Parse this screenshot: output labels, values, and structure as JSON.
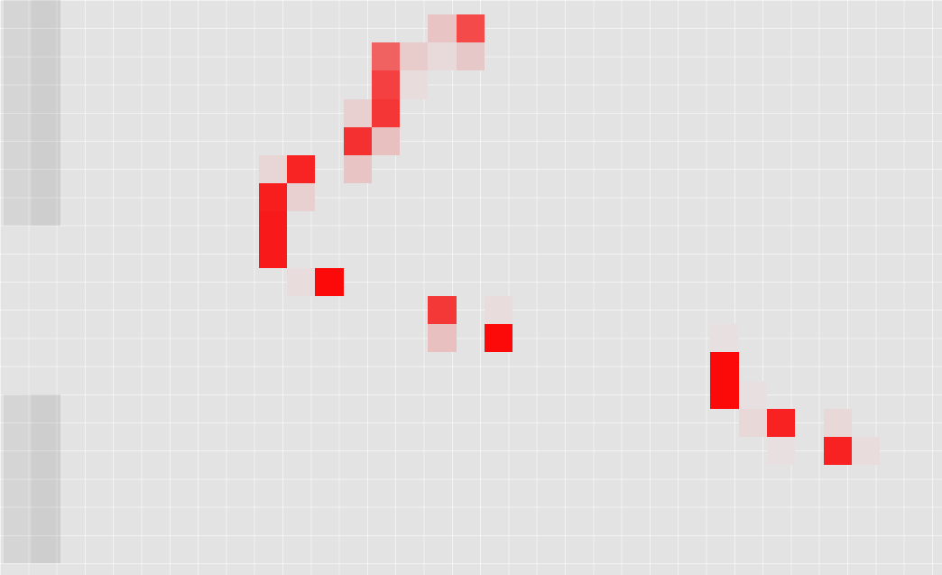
{
  "game": {
    "grid": {
      "columns": 34,
      "rows": 21,
      "background_color": "#e3e3e3",
      "line_color": "#f4f4f4"
    },
    "shaded_columns": [
      {
        "col": 1,
        "row_start": 0,
        "row_end": 7,
        "intensity": 0.06
      },
      {
        "col": 2,
        "row_start": 0,
        "row_end": 7,
        "intensity": 0.09
      },
      {
        "col": 1,
        "row_start": 14,
        "row_end": 19,
        "intensity": 0.06
      },
      {
        "col": 2,
        "row_start": 14,
        "row_end": 19,
        "intensity": 0.09
      }
    ],
    "cells": [
      {
        "col": 16,
        "row": 0,
        "color": "#e8c4c4"
      },
      {
        "col": 17,
        "row": 0,
        "color": "#f44a4a"
      },
      {
        "col": 14,
        "row": 1,
        "color": "#f06262"
      },
      {
        "col": 15,
        "row": 1,
        "color": "#e8cccc"
      },
      {
        "col": 16,
        "row": 1,
        "color": "#e8dada"
      },
      {
        "col": 17,
        "row": 1,
        "color": "#e6c8c8"
      },
      {
        "col": 14,
        "row": 2,
        "color": "#f44040"
      },
      {
        "col": 15,
        "row": 2,
        "color": "#e8dcdc"
      },
      {
        "col": 13,
        "row": 3,
        "color": "#e8d0d0"
      },
      {
        "col": 14,
        "row": 3,
        "color": "#f43636"
      },
      {
        "col": 13,
        "row": 4,
        "color": "#f43030"
      },
      {
        "col": 14,
        "row": 4,
        "color": "#e8c0c0"
      },
      {
        "col": 10,
        "row": 5,
        "color": "#e8d6d6"
      },
      {
        "col": 11,
        "row": 5,
        "color": "#f82424"
      },
      {
        "col": 13,
        "row": 5,
        "color": "#e8c4c4"
      },
      {
        "col": 10,
        "row": 6,
        "color": "#f81e1e"
      },
      {
        "col": 11,
        "row": 6,
        "color": "#e8d0d0"
      },
      {
        "col": 10,
        "row": 7,
        "color": "#f81a1a"
      },
      {
        "col": 10,
        "row": 8,
        "color": "#f81a1a"
      },
      {
        "col": 11,
        "row": 9,
        "color": "#e8dcdc"
      },
      {
        "col": 12,
        "row": 9,
        "color": "#fc0a0a"
      },
      {
        "col": 16,
        "row": 10,
        "color": "#f43838"
      },
      {
        "col": 18,
        "row": 10,
        "color": "#e8dcdc"
      },
      {
        "col": 16,
        "row": 11,
        "color": "#e8c0c0"
      },
      {
        "col": 18,
        "row": 11,
        "color": "#fc0a0a"
      },
      {
        "col": 26,
        "row": 11,
        "color": "#e8e0e0"
      },
      {
        "col": 26,
        "row": 12,
        "color": "#fc0a0a"
      },
      {
        "col": 26,
        "row": 13,
        "color": "#fc0a0a"
      },
      {
        "col": 27,
        "row": 13,
        "color": "#e8e0e0"
      },
      {
        "col": 27,
        "row": 14,
        "color": "#e8d8d8"
      },
      {
        "col": 28,
        "row": 14,
        "color": "#f82222"
      },
      {
        "col": 30,
        "row": 14,
        "color": "#e8d8d8"
      },
      {
        "col": 28,
        "row": 15,
        "color": "#e8e0e0"
      },
      {
        "col": 30,
        "row": 15,
        "color": "#f82222"
      },
      {
        "col": 31,
        "row": 15,
        "color": "#e8dcdc"
      }
    ]
  }
}
